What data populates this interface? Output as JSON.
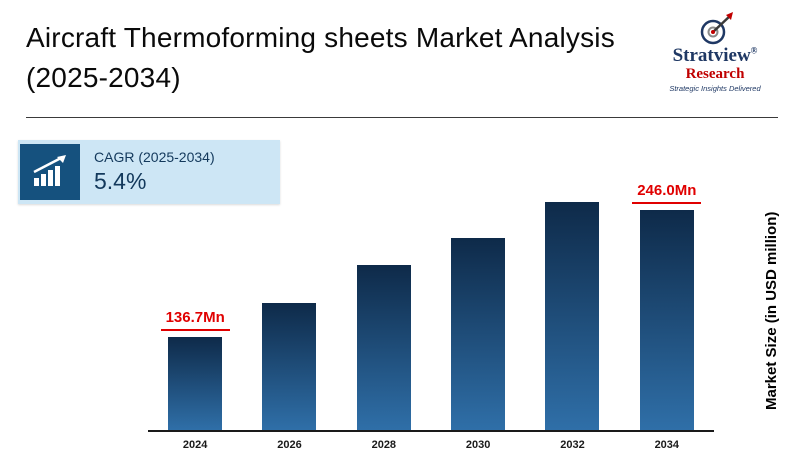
{
  "header": {
    "title": "Aircraft Thermoforming sheets Market Analysis (2025-2034)"
  },
  "logo": {
    "name": "Stratview",
    "registered": "®",
    "name2": "Research",
    "tagline": "Strategic Insights Delivered"
  },
  "cagr": {
    "label": "CAGR (2025-2034)",
    "value": "5.4%"
  },
  "chart_data": {
    "type": "bar",
    "title": "Aircraft Thermoforming sheets Market Analysis (2025-2034)",
    "categories": [
      "2024",
      "2026",
      "2028",
      "2030",
      "2032",
      "2034"
    ],
    "values": [
      136.7,
      161.5,
      188.5,
      208.5,
      234.5,
      246.0
    ],
    "unit": "USD million",
    "ylabel": "Market Size (in USD million)",
    "xlabel": "",
    "ylim": [
      70,
      250
    ],
    "grid": false,
    "legend": "none",
    "annotations": [
      {
        "index": 0,
        "text": "136.7Mn"
      },
      {
        "index": 5,
        "text": "246.0Mn"
      }
    ],
    "colors": {
      "bar_top": "#0e2a49",
      "bar_bottom": "#2f6fa8",
      "annotation": "#e00000",
      "cagr_box_bg": "#cde6f5",
      "cagr_icon_bg": "#15517e"
    }
  }
}
